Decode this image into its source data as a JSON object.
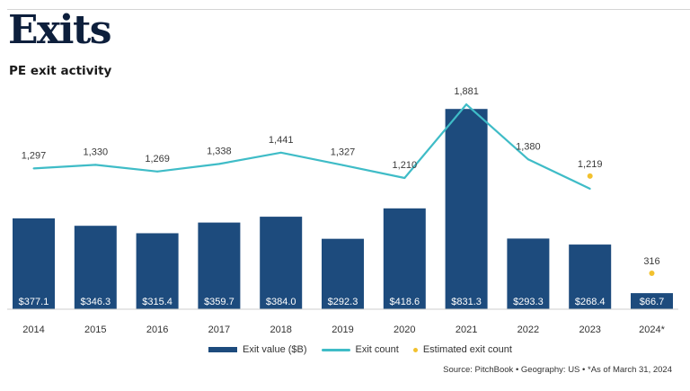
{
  "header": {
    "page_title": "Exits",
    "chart_title": "PE exit activity"
  },
  "colors": {
    "bar": "#1d4b7d",
    "line": "#3fbcc7",
    "estimate": "#f2c12e",
    "title": "#0d1f3c"
  },
  "chart_data": {
    "type": "bar",
    "title": "PE exit activity",
    "xlabel": "",
    "ylabel": "",
    "categories": [
      "2014",
      "2015",
      "2016",
      "2017",
      "2018",
      "2019",
      "2020",
      "2021",
      "2022",
      "2023",
      "2024*"
    ],
    "series": [
      {
        "name": "Exit value ($B)",
        "type": "bar",
        "values": [
          377.1,
          346.3,
          315.4,
          359.7,
          384.0,
          292.3,
          418.6,
          831.3,
          293.3,
          268.4,
          66.7
        ],
        "labels": [
          "$377.1",
          "$346.3",
          "$315.4",
          "$359.7",
          "$384.0",
          "$292.3",
          "$418.6",
          "$831.3",
          "$293.3",
          "$268.4",
          "$66.7"
        ]
      },
      {
        "name": "Exit count",
        "type": "line",
        "values": [
          1297,
          1330,
          1269,
          1338,
          1441,
          1327,
          1210,
          1881,
          1380,
          1112,
          null
        ],
        "labels": [
          "1,297",
          "1,330",
          "1,269",
          "1,338",
          "1,441",
          "1,327",
          "1,210",
          "1,881",
          "1,380",
          null,
          null
        ]
      },
      {
        "name": "Estimated exit count",
        "type": "scatter",
        "values": [
          null,
          null,
          null,
          null,
          null,
          null,
          null,
          null,
          null,
          1219,
          316
        ],
        "labels": [
          null,
          null,
          null,
          null,
          null,
          null,
          null,
          null,
          null,
          "1,219",
          "316"
        ]
      }
    ],
    "legend": [
      "Exit value ($B)",
      "Exit count",
      "Estimated exit count"
    ],
    "legend_position": "bottom",
    "grid": false,
    "bar_ylim": [
      0,
      900
    ],
    "line_ylim": [
      0,
      2000
    ]
  },
  "footer": {
    "source": "Source: PitchBook  •  Geography: US  •  *As of March 31, 2024"
  }
}
